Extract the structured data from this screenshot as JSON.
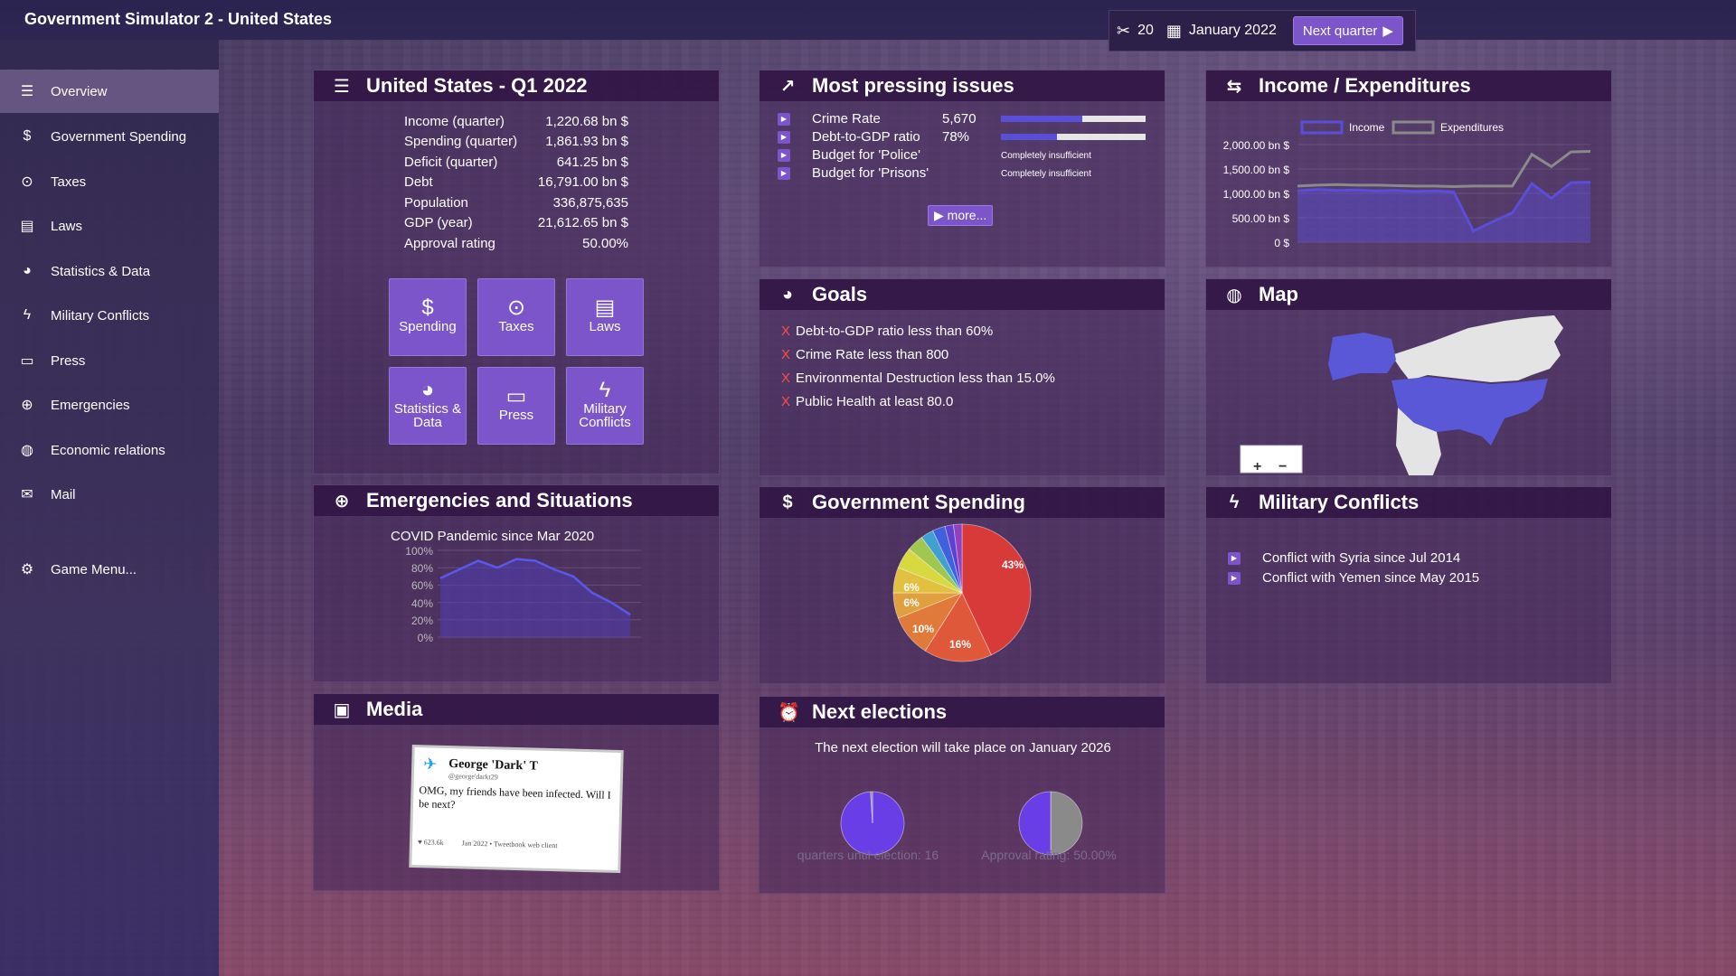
{
  "app": {
    "title": "Government Simulator 2 - United States"
  },
  "topbar": {
    "points": "20",
    "date": "January 2022",
    "next_quarter": "Next quarter"
  },
  "sidebar": {
    "items": [
      {
        "label": "Overview",
        "icon": "ledger-icon"
      },
      {
        "label": "Government Spending",
        "icon": "dollar-icon"
      },
      {
        "label": "Taxes",
        "icon": "coin-icon"
      },
      {
        "label": "Laws",
        "icon": "book-icon"
      },
      {
        "label": "Statistics & Data",
        "icon": "pie-icon"
      },
      {
        "label": "Military Conflicts",
        "icon": "bolt-icon"
      },
      {
        "label": "Press",
        "icon": "newspaper-icon"
      },
      {
        "label": "Emergencies",
        "icon": "crosshair-icon"
      },
      {
        "label": "Economic relations",
        "icon": "globe-icon"
      },
      {
        "label": "Mail",
        "icon": "mail-icon"
      },
      {
        "label": "Game Menu...",
        "icon": "gear-icon"
      }
    ]
  },
  "overview": {
    "title": "United States - Q1 2022",
    "stats": [
      {
        "label": "Income (quarter)",
        "value": "1,220.68 bn $"
      },
      {
        "label": "Spending (quarter)",
        "value": "1,861.93 bn $"
      },
      {
        "label": "Deficit (quarter)",
        "value": "641.25 bn $"
      },
      {
        "label": "Debt",
        "value": "16,791.00 bn $"
      },
      {
        "label": "Population",
        "value": "336,875,635"
      },
      {
        "label": "GDP (year)",
        "value": "21,612.65 bn $"
      },
      {
        "label": "Approval rating",
        "value": "50.00%"
      }
    ],
    "tiles": [
      {
        "label": "Spending"
      },
      {
        "label": "Taxes"
      },
      {
        "label": "Laws"
      },
      {
        "label": "Statistics & Data"
      },
      {
        "label": "Press"
      },
      {
        "label": "Military Conflicts"
      }
    ]
  },
  "issues": {
    "title": "Most pressing issues",
    "items": [
      {
        "label": "Crime Rate",
        "value": "5,670",
        "bar": 0.56
      },
      {
        "label": "Debt-to-GDP ratio",
        "value": "78%",
        "bar": 0.39
      },
      {
        "label": "Budget for 'Police'",
        "note": "Completely insufficient"
      },
      {
        "label": "Budget for 'Prisons'",
        "note": "Completely insufficient"
      }
    ],
    "more": "more..."
  },
  "income": {
    "title": "Income / Expenditures",
    "legend": [
      "Income",
      "Expenditures"
    ],
    "yticks": [
      "2,000.00 bn $",
      "1,500.00 bn $",
      "1,000.00 bn $",
      "500.00 bn $",
      "0 $"
    ]
  },
  "goals": {
    "title": "Goals",
    "items": [
      "Debt-to-GDP ratio less than 60%",
      "Crime Rate less than 800",
      "Environmental Destruction less than 15.0%",
      "Public Health at least 80.0"
    ]
  },
  "map": {
    "title": "Map",
    "zoom_in": "+",
    "zoom_out": "−"
  },
  "emergencies": {
    "title": "Emergencies and Situations",
    "subtitle": "COVID Pandemic since Mar 2020",
    "yticks": [
      "100%",
      "80%",
      "60%",
      "40%",
      "20%",
      "0%"
    ]
  },
  "spending": {
    "title": "Government Spending",
    "slices": [
      "43%",
      "16%",
      "10%",
      "6%",
      "6%"
    ]
  },
  "conflicts": {
    "title": "Military Conflicts",
    "items": [
      "Conflict with Syria since Jul 2014",
      "Conflict with Yemen since May 2015"
    ]
  },
  "media": {
    "title": "Media",
    "tweet": {
      "name": "George 'Dark' T",
      "handle": "@george'darkt29",
      "text": "OMG, my friends have been infected. Will I be next?",
      "likes": "♥ 623.6k",
      "meta": "Jan 2022 • Tweetbook web client"
    }
  },
  "elections": {
    "title": "Next elections",
    "text": "The next election will take place on January 2026",
    "quarters_label": "quarters until election: 16",
    "approval_label": "Approval rating: 50.00%"
  },
  "colors": {
    "accent": "#7b55c9",
    "header": "#32164a",
    "income_line": "#5a4ed8",
    "expenditure_line": "#8a8a8a",
    "goal_fail": "#ff4a4a"
  },
  "chart_data": [
    {
      "type": "line",
      "title": "Income / Expenditures",
      "ylim": [
        0,
        2000
      ],
      "series": [
        {
          "name": "Income",
          "values": [
            1050,
            1080,
            1060,
            1070,
            1050,
            1060,
            1040,
            1050,
            1030,
            230,
            420,
            600,
            1200,
            900,
            1220,
            1230
          ]
        },
        {
          "name": "Expenditures",
          "values": [
            1150,
            1170,
            1180,
            1170,
            1170,
            1160,
            1150,
            1150,
            1140,
            1150,
            1150,
            1150,
            1800,
            1550,
            1850,
            1860
          ]
        }
      ]
    },
    {
      "type": "area",
      "title": "COVID Pandemic since Mar 2020",
      "ylim": [
        0,
        100
      ],
      "series": [
        {
          "name": "",
          "values": [
            68,
            78,
            88,
            80,
            90,
            88,
            78,
            70,
            51,
            40,
            26
          ]
        }
      ]
    },
    {
      "type": "pie",
      "title": "Government Spending",
      "values": [
        43,
        16,
        10,
        6,
        6,
        5,
        4,
        3,
        3,
        2,
        2
      ]
    },
    {
      "type": "pie",
      "title": "quarters until election: 16",
      "values": [
        99,
        1
      ]
    },
    {
      "type": "pie",
      "title": "Approval rating: 50.00%",
      "values": [
        50,
        50
      ]
    }
  ]
}
